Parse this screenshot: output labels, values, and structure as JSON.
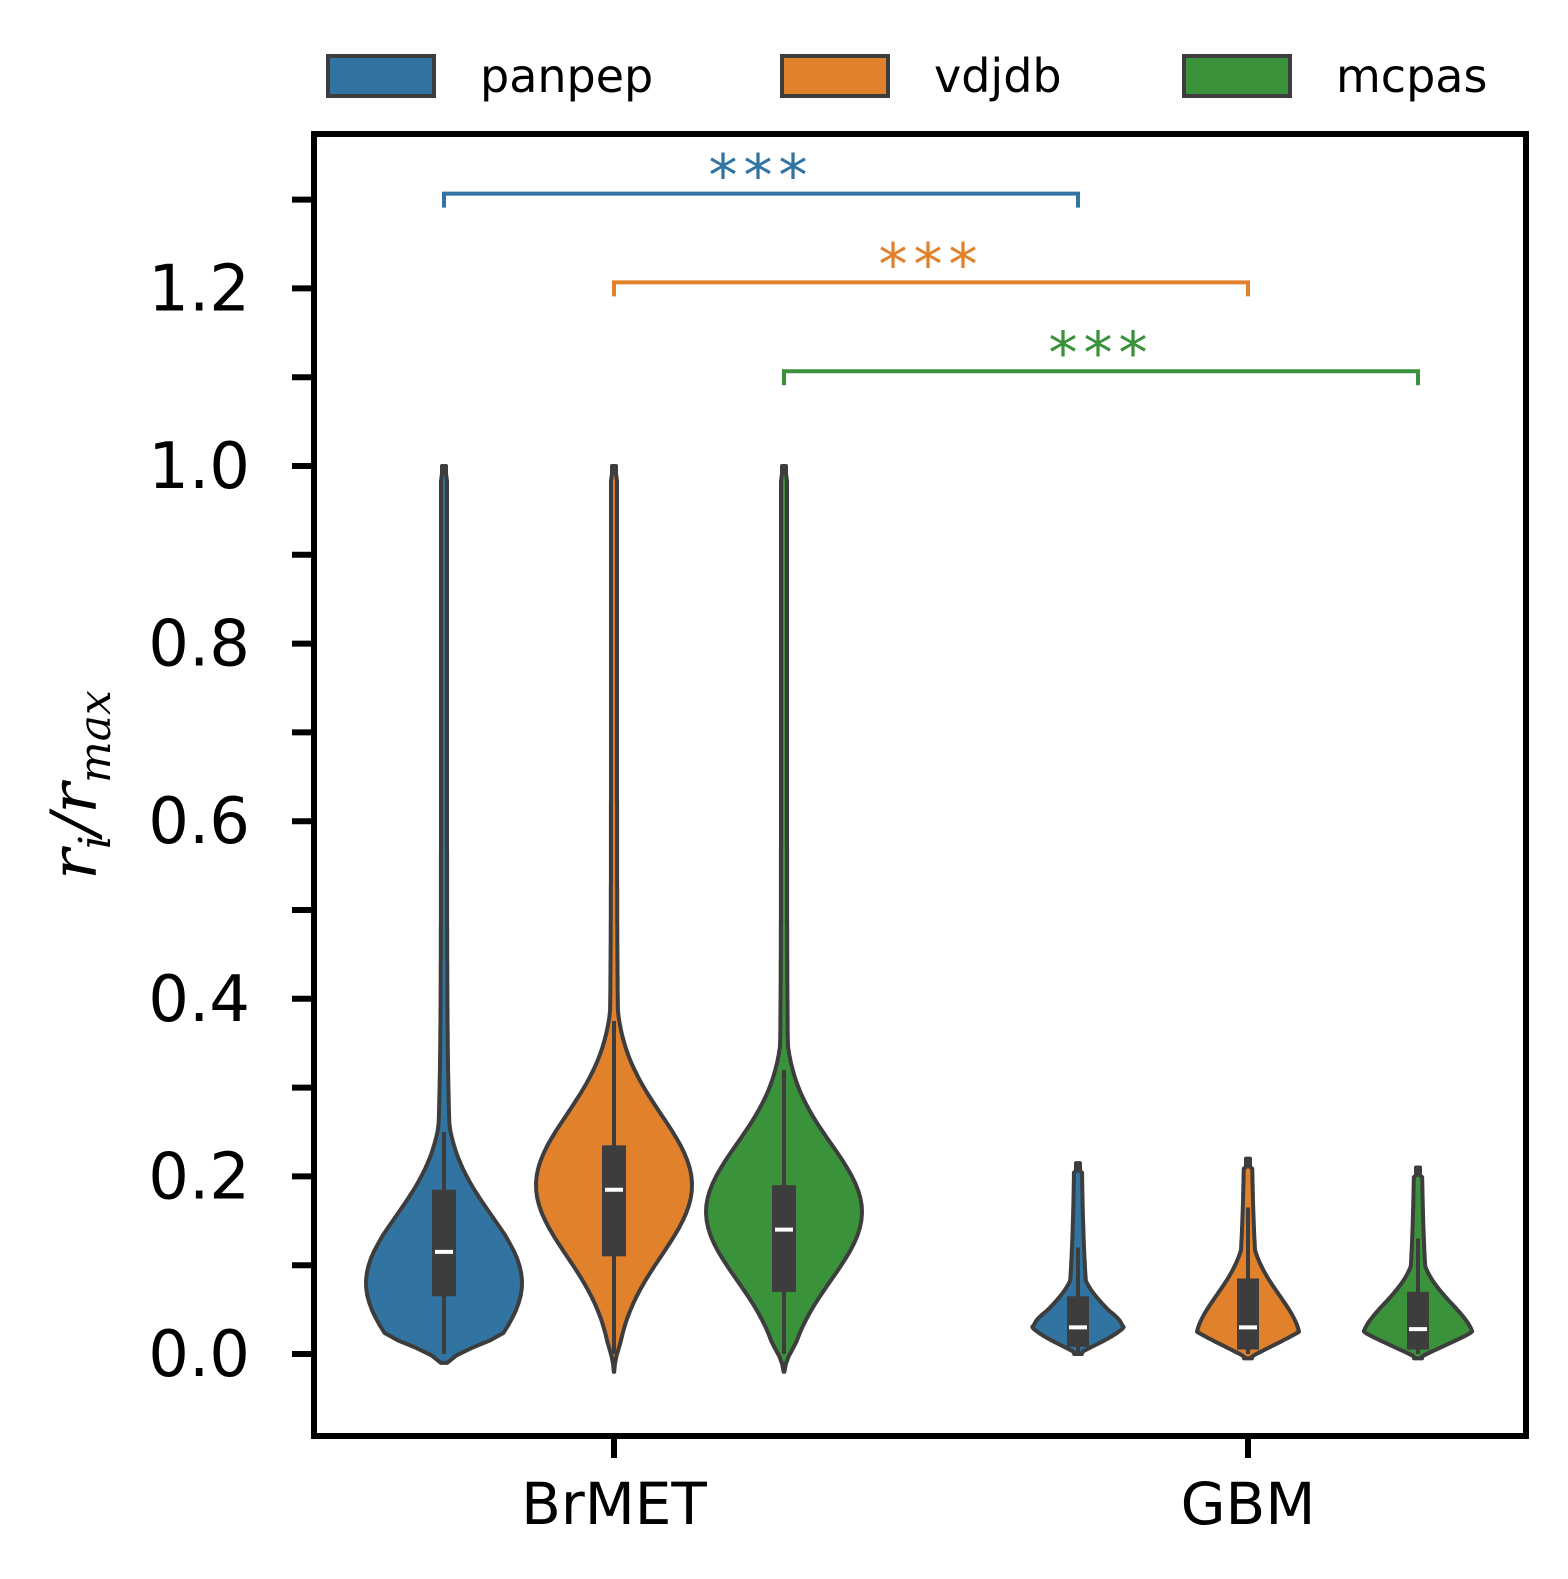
{
  "chart_data": {
    "type": "violin",
    "title": "",
    "xlabel": "",
    "ylabel": {
      "main": "r",
      "sub": "i",
      "sep": "/",
      "main2": "r",
      "sub2": "max"
    },
    "ylim": [
      -0.09,
      1.37
    ],
    "yticks_major": [
      0.0,
      0.2,
      0.4,
      0.6,
      0.8,
      1.0,
      1.2
    ],
    "ytick_labels": [
      "0.0",
      "0.2",
      "0.4",
      "0.6",
      "0.8",
      "1.0",
      "1.2"
    ],
    "yticks_minor": [
      0.1,
      0.3,
      0.5,
      0.7,
      0.9,
      1.1,
      1.3
    ],
    "grid": false,
    "legend_position": "top",
    "categories": [
      "BrMET",
      "GBM"
    ],
    "series": [
      {
        "name": "panpep",
        "color": "#3274a1",
        "stats": [
          {
            "min": -0.01,
            "max": 1.0,
            "q1": 0.065,
            "median": 0.115,
            "q3": 0.185,
            "whisker_low": 0.0,
            "whisker_high": 0.25,
            "mode": 0.08
          },
          {
            "min": 0.0,
            "max": 0.215,
            "q1": 0.008,
            "median": 0.03,
            "q3": 0.065,
            "whisker_low": 0.0,
            "whisker_high": 0.12,
            "mode": 0.012
          }
        ]
      },
      {
        "name": "vdjdb",
        "color": "#e1812c",
        "stats": [
          {
            "min": -0.02,
            "max": 1.0,
            "q1": 0.11,
            "median": 0.185,
            "q3": 0.235,
            "whisker_low": 0.0,
            "whisker_high": 0.375,
            "mode": 0.19
          },
          {
            "min": -0.005,
            "max": 0.22,
            "q1": 0.005,
            "median": 0.03,
            "q3": 0.085,
            "whisker_low": 0.0,
            "whisker_high": 0.165,
            "mode": 0.015
          }
        ]
      },
      {
        "name": "mcpas",
        "color": "#3a923a",
        "stats": [
          {
            "min": -0.02,
            "max": 1.0,
            "q1": 0.07,
            "median": 0.14,
            "q3": 0.19,
            "whisker_low": 0.0,
            "whisker_high": 0.32,
            "mode": 0.16
          },
          {
            "min": -0.005,
            "max": 0.21,
            "q1": 0.005,
            "median": 0.028,
            "q3": 0.07,
            "whisker_low": 0.0,
            "whisker_high": 0.13,
            "mode": 0.015
          }
        ]
      }
    ],
    "annotations": [
      {
        "series": "panpep",
        "label": "***",
        "y": 1.3,
        "color": "#3274a1"
      },
      {
        "series": "vdjdb",
        "label": "***",
        "y": 1.2,
        "color": "#e1812c"
      },
      {
        "series": "mcpas",
        "label": "***",
        "y": 1.1,
        "color": "#3a923a"
      }
    ]
  }
}
